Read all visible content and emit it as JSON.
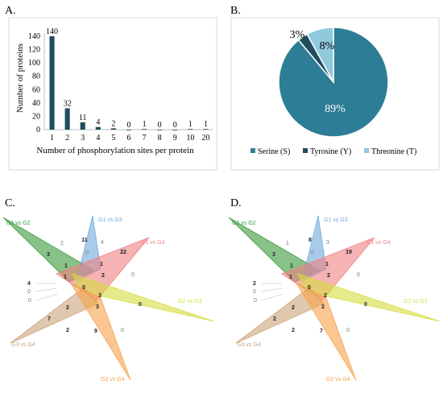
{
  "panels": {
    "a": {
      "label": "A."
    },
    "b": {
      "label": "B."
    },
    "c": {
      "label": "C."
    },
    "d": {
      "label": "D."
    }
  },
  "colors": {
    "bar": "#1f4e5f",
    "serine": "#2e7d96",
    "tyrosine": "#1f4e5f",
    "threonine": "#8fc9dc",
    "g1g2": "#3a9a3a",
    "g1g3": "#6fa8dc",
    "g1g4": "#f08080",
    "g2g3": "#d6dc3e",
    "g3g4": "#c9a37a",
    "g2g4": "#f6a14a"
  },
  "chart_data": [
    {
      "type": "bar",
      "panel": "A.",
      "categories": [
        "1",
        "2",
        "3",
        "4",
        "5",
        "6",
        "7",
        "8",
        "9",
        "10",
        "20"
      ],
      "values": [
        140,
        32,
        11,
        4,
        2,
        0,
        1,
        0,
        0,
        1,
        1
      ],
      "data_labels": [
        "140",
        "32",
        "11",
        "4",
        "2",
        "0",
        "1",
        "0",
        "0",
        "1",
        "1"
      ],
      "xlabel": "Number of phosphorylation sites per protein",
      "ylabel": "Number of proteins",
      "ylim": [
        0,
        140
      ],
      "yticks": [
        "0",
        "20",
        "40",
        "60",
        "80",
        "100",
        "120",
        "140"
      ],
      "grid": false
    },
    {
      "type": "pie",
      "panel": "B.",
      "categories": [
        "Serine (S)",
        "Tyrosine (Y)",
        "Threonine (T)"
      ],
      "values": [
        89,
        3,
        8
      ],
      "data_labels": [
        "89%",
        "3%",
        "8%"
      ],
      "legend": "bottom"
    },
    {
      "type": "venn",
      "panel": "C.",
      "sets": [
        "G1 vs G2",
        "G1 vs G3",
        "G1 vs G4",
        "G2 vs G3",
        "G3 vs G4",
        "G2 vs G4"
      ],
      "region_counts": [
        "2",
        "11",
        "4",
        "3",
        "0",
        "22",
        "0",
        "1",
        "1",
        "2",
        "4",
        "0",
        "0",
        "1",
        "0",
        "3",
        "3",
        "7",
        "2",
        "2",
        "9",
        "0",
        "0"
      ]
    },
    {
      "type": "venn",
      "panel": "D.",
      "sets": [
        "G1 vs G2",
        "G1 vs G3",
        "G1 vs G4",
        "G2 vs G3",
        "G3 vs G4",
        "G2 vs G4"
      ],
      "region_counts": [
        "1",
        "8",
        "3",
        "3",
        "0",
        "19",
        "0",
        "1",
        "1",
        "2",
        "2",
        "0",
        "0",
        "1",
        "0",
        "2",
        "2",
        "2",
        "2",
        "2",
        "7",
        "0",
        "0"
      ]
    }
  ]
}
